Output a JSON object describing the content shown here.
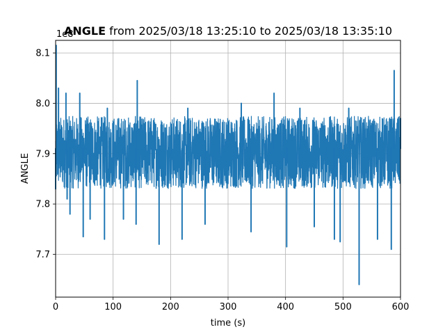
{
  "chart_data": {
    "type": "line",
    "title_bold": "ANGLE",
    "title_rest": " from 2025/03/18 13:25:10 to 2025/03/18 13:35:10",
    "xlabel": "time (s)",
    "ylabel": "ANGLE",
    "y_offset_text": "1e8",
    "xlim": [
      0,
      600
    ],
    "ylim": [
      7.615,
      8.125
    ],
    "x_ticks": [
      0,
      100,
      200,
      300,
      400,
      500,
      600
    ],
    "x_tick_labels": [
      "0",
      "100",
      "200",
      "300",
      "400",
      "500",
      "600"
    ],
    "y_ticks": [
      7.7,
      7.8,
      7.9,
      8.0,
      8.1
    ],
    "y_tick_labels": [
      "7.7",
      "7.8",
      "7.9",
      "8.0",
      "8.1"
    ],
    "grid": true,
    "series": [
      {
        "color": "#1f77b4",
        "band": {
          "mean": 7.91,
          "low": 7.83,
          "high": 7.975
        },
        "x": [
          0,
          1,
          5,
          18,
          20,
          25,
          42,
          48,
          50,
          60,
          85,
          90,
          100,
          118,
          140,
          142,
          150,
          180,
          200,
          220,
          230,
          260,
          300,
          323,
          340,
          360,
          380,
          402,
          425,
          450,
          470,
          485,
          495,
          510,
          528,
          550,
          560,
          584,
          589,
          600
        ],
        "y": [
          7.83,
          8.115,
          8.03,
          8.02,
          7.81,
          7.78,
          8.02,
          7.735,
          7.91,
          7.77,
          7.73,
          7.99,
          7.88,
          7.77,
          7.76,
          8.045,
          7.93,
          7.72,
          7.9,
          7.73,
          7.99,
          7.76,
          7.9,
          8.0,
          7.745,
          7.9,
          8.02,
          7.715,
          7.99,
          7.755,
          7.9,
          7.73,
          7.725,
          7.99,
          7.64,
          7.96,
          7.73,
          7.71,
          8.065,
          7.97
        ]
      }
    ]
  }
}
